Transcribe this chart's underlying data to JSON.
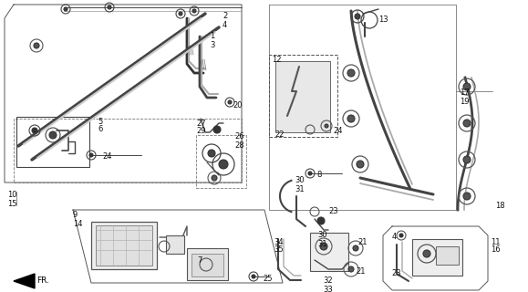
{
  "bg_color": "#ffffff",
  "fig_width": 5.79,
  "fig_height": 3.2,
  "dpi": 100,
  "gray": "#333333",
  "lgray": "#888888",
  "fs": 6.0
}
